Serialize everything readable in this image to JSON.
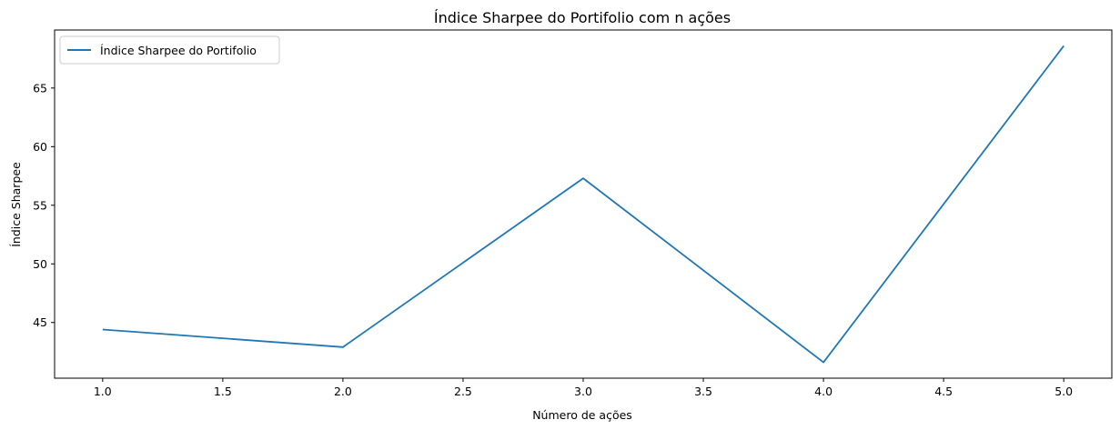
{
  "chart_data": {
    "type": "line",
    "title": "Índice Sharpee do Portifolio com n ações",
    "xlabel": "Número de ações",
    "ylabel": "Índice Sharpee",
    "x": [
      1.0,
      2.0,
      3.0,
      4.0,
      5.0
    ],
    "series": [
      {
        "name": "Índice Sharpee do Portifolio",
        "values": [
          44.4,
          42.9,
          57.3,
          41.6,
          68.6
        ],
        "color": "#1f77b4"
      }
    ],
    "xlim": [
      0.8,
      5.2
    ],
    "ylim": [
      40.25,
      69.95
    ],
    "xticks": [
      1.0,
      1.5,
      2.0,
      2.5,
      3.0,
      3.5,
      4.0,
      4.5,
      5.0
    ],
    "xtick_labels": [
      "1.0",
      "1.5",
      "2.0",
      "2.5",
      "3.0",
      "3.5",
      "4.0",
      "4.5",
      "5.0"
    ],
    "yticks": [
      45,
      50,
      55,
      60,
      65
    ],
    "ytick_labels": [
      "45",
      "50",
      "55",
      "60",
      "65"
    ],
    "grid": false,
    "legend_position": "top-left"
  }
}
